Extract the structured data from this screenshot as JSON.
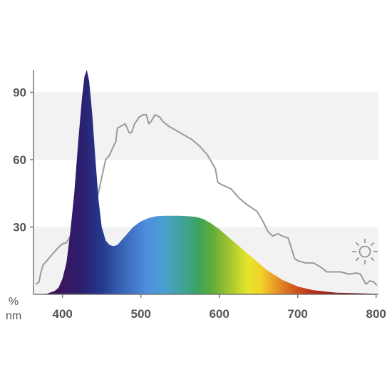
{
  "chart_data": {
    "type": "area",
    "title": "",
    "xlabel": "nm",
    "ylabel": "%",
    "xlim": [
      363,
      803
    ],
    "ylim": [
      0,
      100
    ],
    "x_ticks": [
      400,
      500,
      600,
      700,
      800
    ],
    "y_ticks": [
      30,
      60,
      90
    ],
    "grid": "alternating horizontal bands between 30-60 and 90-100 in white, shaded light grey between 0-30 and 60-90",
    "band_color": "#f2f2f2",
    "legend_icon": "sun-icon",
    "colors": {
      "axis": "#777777",
      "reference_line": "#9a9a9a",
      "tick_text": "#555555"
    },
    "series": [
      {
        "style": "filled area with visible-spectrum color gradient",
        "points": [
          [
            365,
            0
          ],
          [
            380,
            0.3
          ],
          [
            390,
            1.5
          ],
          [
            395,
            3
          ],
          [
            400,
            7
          ],
          [
            405,
            14
          ],
          [
            410,
            28
          ],
          [
            415,
            45
          ],
          [
            420,
            68
          ],
          [
            425,
            88
          ],
          [
            428,
            97
          ],
          [
            431,
            100
          ],
          [
            434,
            95
          ],
          [
            438,
            80
          ],
          [
            442,
            60
          ],
          [
            446,
            42
          ],
          [
            450,
            30
          ],
          [
            455,
            24
          ],
          [
            460,
            22
          ],
          [
            465,
            21.5
          ],
          [
            470,
            22
          ],
          [
            480,
            26
          ],
          [
            490,
            30
          ],
          [
            500,
            32.5
          ],
          [
            510,
            34
          ],
          [
            520,
            34.8
          ],
          [
            530,
            35
          ],
          [
            540,
            35
          ],
          [
            550,
            35
          ],
          [
            560,
            34.8
          ],
          [
            570,
            34.5
          ],
          [
            580,
            33.5
          ],
          [
            590,
            31.5
          ],
          [
            600,
            29
          ],
          [
            620,
            23
          ],
          [
            640,
            17
          ],
          [
            660,
            11
          ],
          [
            680,
            6.5
          ],
          [
            700,
            3.5
          ],
          [
            720,
            1.8
          ],
          [
            750,
            0.7
          ],
          [
            800,
            0.3
          ]
        ]
      },
      {
        "style": "grey line (sunlight reference)",
        "points": [
          [
            366,
            4.5
          ],
          [
            370,
            5.5
          ],
          [
            372,
            9
          ],
          [
            375,
            13
          ],
          [
            380,
            15
          ],
          [
            385,
            17
          ],
          [
            390,
            19
          ],
          [
            395,
            21
          ],
          [
            400,
            22.5
          ],
          [
            405,
            23
          ],
          [
            410,
            26
          ],
          [
            413,
            30
          ],
          [
            417,
            35
          ],
          [
            422,
            37
          ],
          [
            428,
            39
          ],
          [
            435,
            40
          ],
          [
            440,
            42
          ],
          [
            445,
            44
          ],
          [
            450,
            52
          ],
          [
            455,
            60
          ],
          [
            460,
            62
          ],
          [
            465,
            66
          ],
          [
            468,
            68
          ],
          [
            470,
            74
          ],
          [
            475,
            75
          ],
          [
            480,
            76
          ],
          [
            485,
            72
          ],
          [
            488,
            72
          ],
          [
            492,
            76
          ],
          [
            498,
            79
          ],
          [
            503,
            80
          ],
          [
            507,
            80
          ],
          [
            510,
            76
          ],
          [
            513,
            77
          ],
          [
            518,
            80
          ],
          [
            524,
            79
          ],
          [
            528,
            77
          ],
          [
            535,
            75
          ],
          [
            545,
            73
          ],
          [
            555,
            71
          ],
          [
            565,
            69
          ],
          [
            575,
            66
          ],
          [
            585,
            62
          ],
          [
            595,
            56
          ],
          [
            598,
            50
          ],
          [
            602,
            49
          ],
          [
            615,
            47
          ],
          [
            625,
            43
          ],
          [
            635,
            40
          ],
          [
            648,
            37
          ],
          [
            655,
            33
          ],
          [
            662,
            28
          ],
          [
            668,
            26
          ],
          [
            675,
            27
          ],
          [
            680,
            26
          ],
          [
            688,
            25
          ],
          [
            696,
            16
          ],
          [
            700,
            15
          ],
          [
            710,
            14
          ],
          [
            720,
            14
          ],
          [
            730,
            12
          ],
          [
            737,
            10
          ],
          [
            745,
            10
          ],
          [
            755,
            10
          ],
          [
            765,
            9
          ],
          [
            775,
            9.5
          ],
          [
            780,
            9
          ],
          [
            787,
            4.5
          ],
          [
            792,
            6
          ],
          [
            797,
            5.5
          ],
          [
            801,
            4
          ]
        ]
      }
    ]
  }
}
